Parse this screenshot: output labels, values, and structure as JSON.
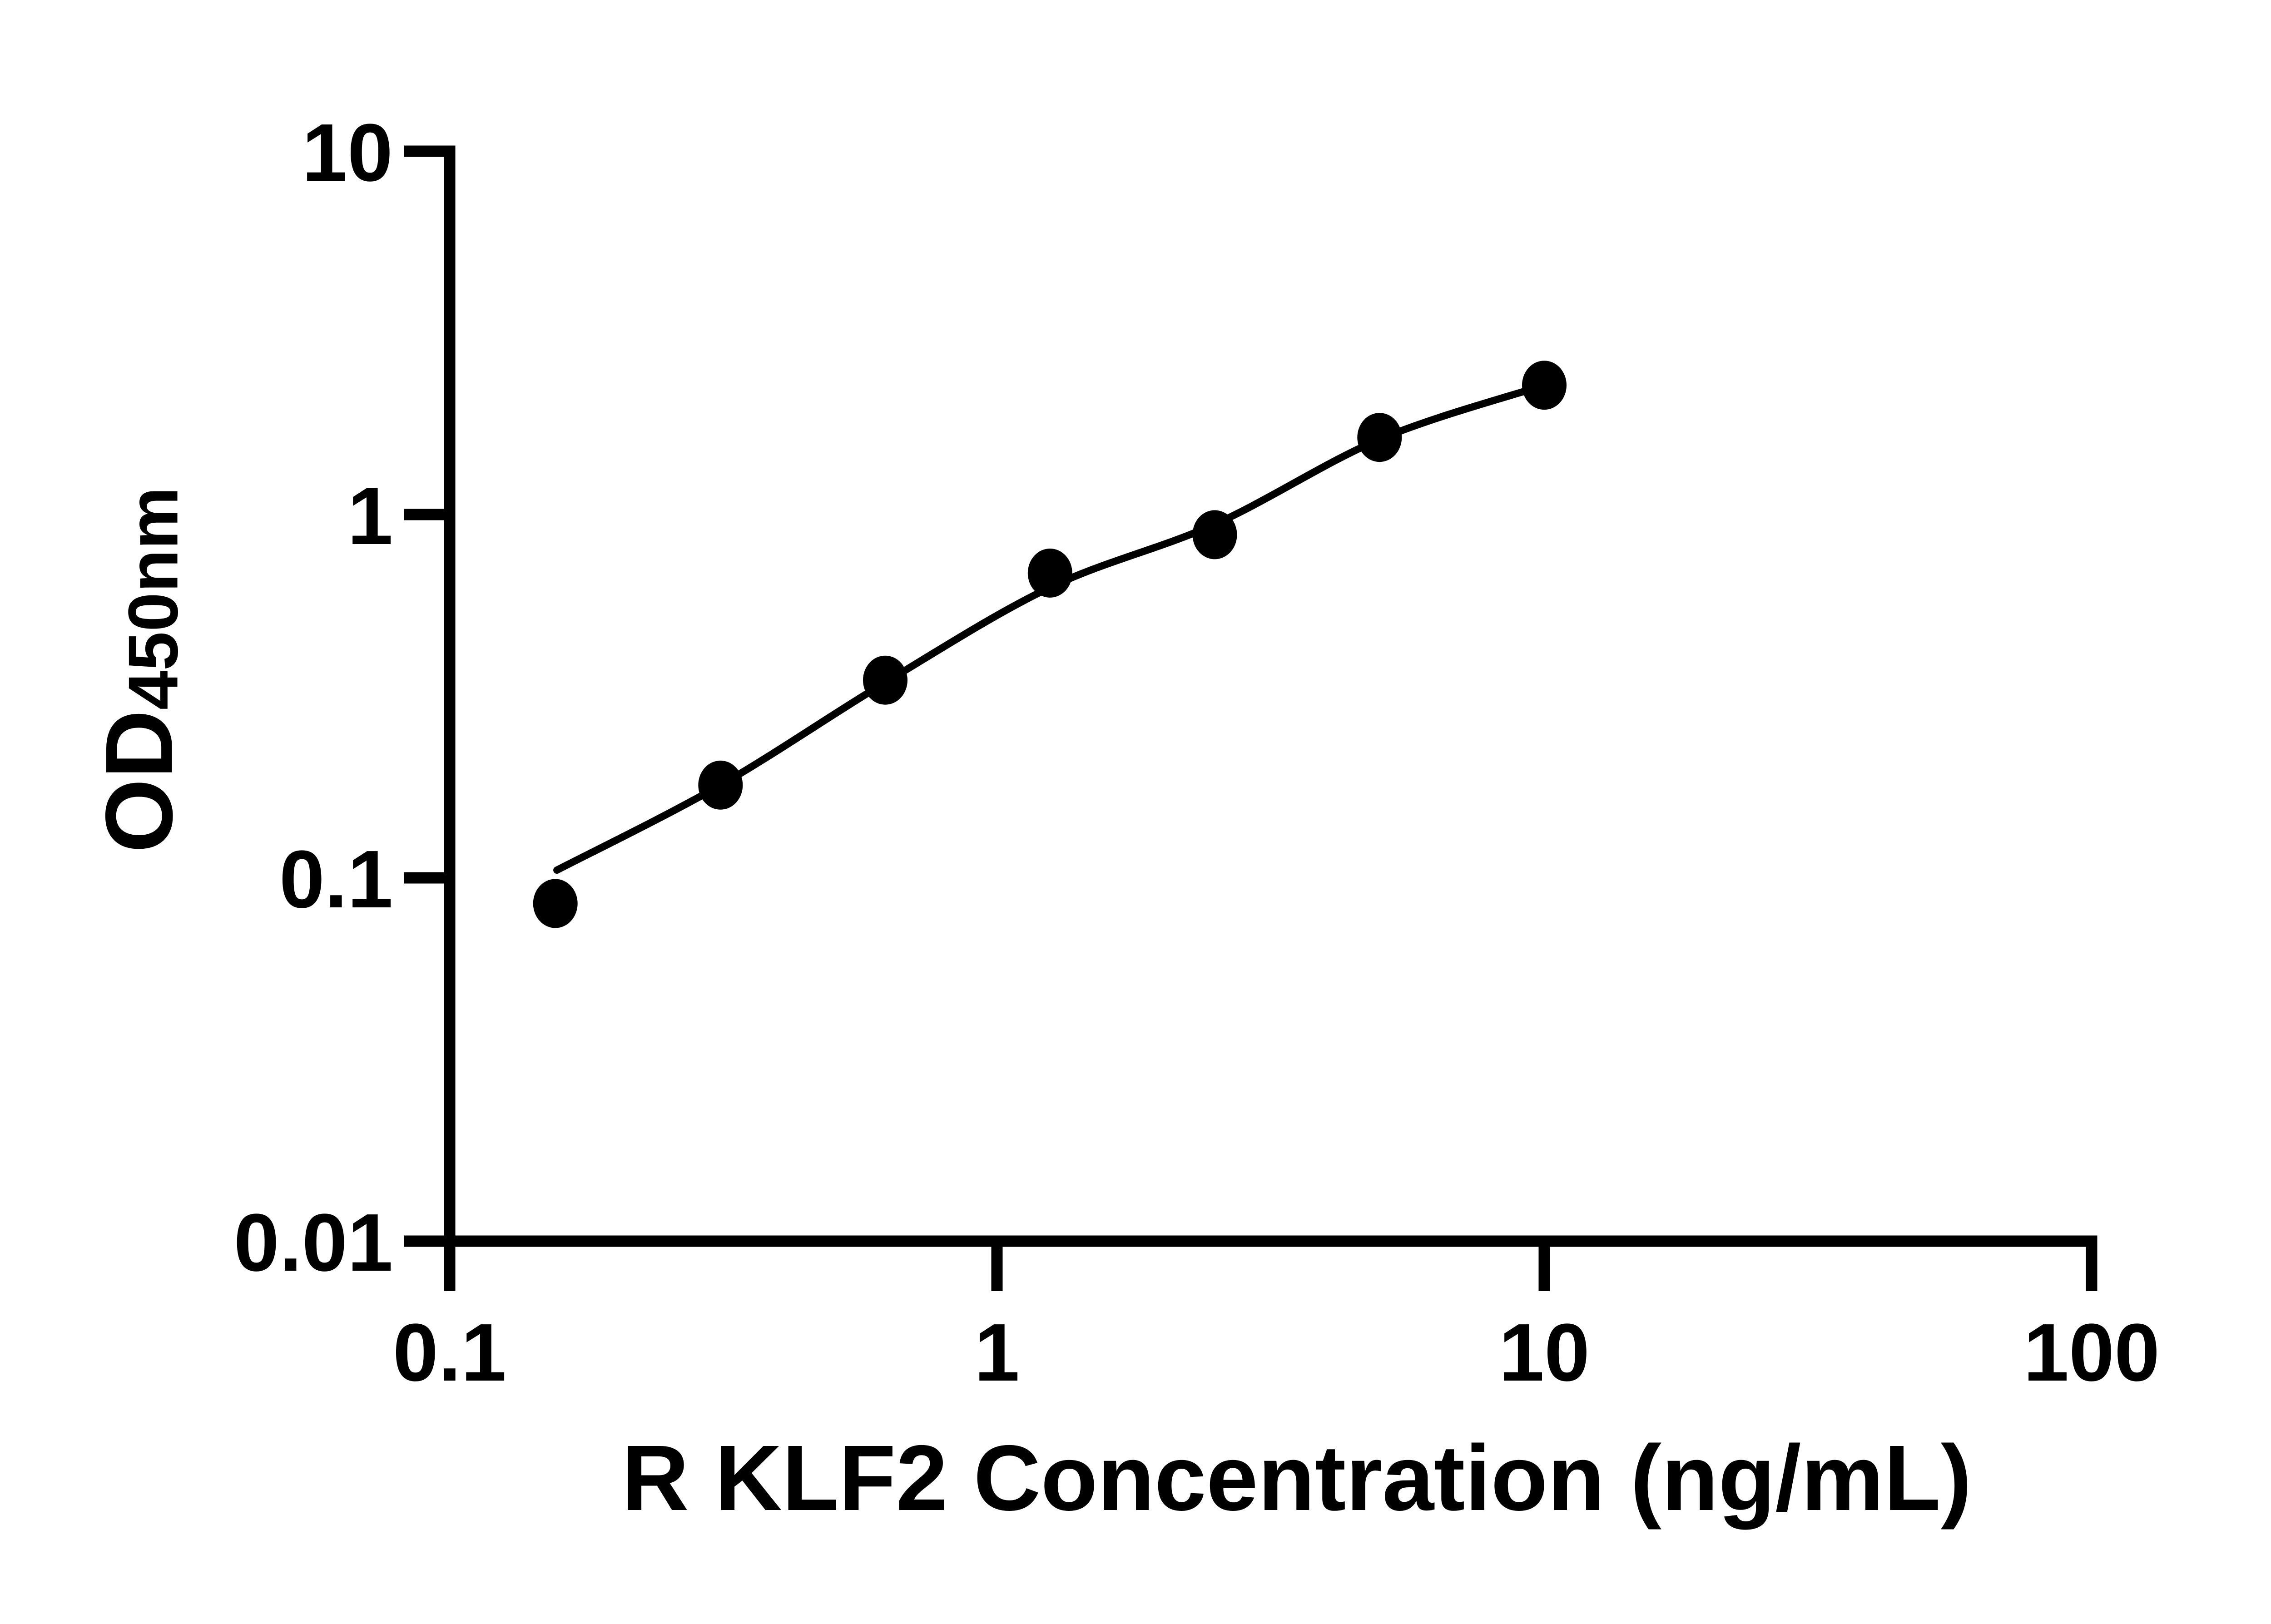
{
  "figure": {
    "background": "#ffffff",
    "foreground": "#000000"
  },
  "chart_data": {
    "type": "scatter",
    "title": "",
    "xlabel": "R KLF2 Concentration (ng/mL)",
    "ylabel": {
      "main": "OD",
      "subscript": "450nm",
      "full": "OD450nm"
    },
    "x_scale": "log10",
    "y_scale": "log10",
    "xlim": [
      0.1,
      100
    ],
    "ylim": [
      0.01,
      10
    ],
    "grid": false,
    "legend": "none",
    "x_ticks": {
      "values": [
        0.1,
        1,
        10,
        100
      ],
      "labels": [
        "0.1",
        "1",
        "10",
        "100"
      ]
    },
    "y_ticks": {
      "values": [
        10,
        1,
        0.1,
        0.01
      ],
      "labels": [
        "10",
        "1",
        "0.1",
        "0.01"
      ]
    },
    "series": [
      {
        "name": "standard-points",
        "type": "scatter",
        "marker": "filled-circle",
        "color": "#000000",
        "x": [
          0.156,
          0.3125,
          0.625,
          1.25,
          2.5,
          5,
          10
        ],
        "y": [
          0.085,
          0.18,
          0.35,
          0.69,
          0.88,
          1.63,
          2.27
        ]
      },
      {
        "name": "fitted-curve",
        "type": "line",
        "color": "#000000",
        "x": [
          0.157,
          0.3125,
          0.625,
          1.25,
          2.5,
          5,
          10
        ],
        "y": [
          0.105,
          0.18,
          0.345,
          0.63,
          0.94,
          1.61,
          2.27
        ]
      }
    ]
  }
}
